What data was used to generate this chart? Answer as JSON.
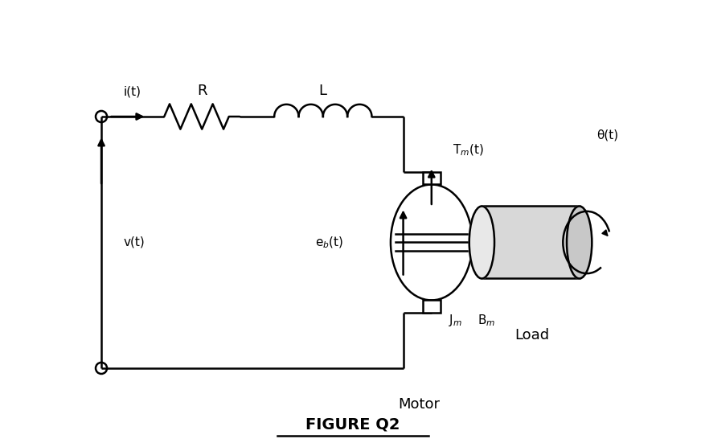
{
  "bg_color": "#ffffff",
  "line_color": "#000000",
  "title": "FIGURE Q2",
  "title_fontsize": 14,
  "fig_width": 8.78,
  "fig_height": 5.56,
  "labels": {
    "it": "i(t)",
    "R": "R",
    "L": "L",
    "vt": "v(t)",
    "ebt": "e$_b$(t)",
    "Tmt": "T$_m$(t)",
    "Jm": "J$_m$",
    "Bm": "B$_m$",
    "thetat": "θ(t)",
    "Motor": "Motor",
    "Load": "Load"
  }
}
